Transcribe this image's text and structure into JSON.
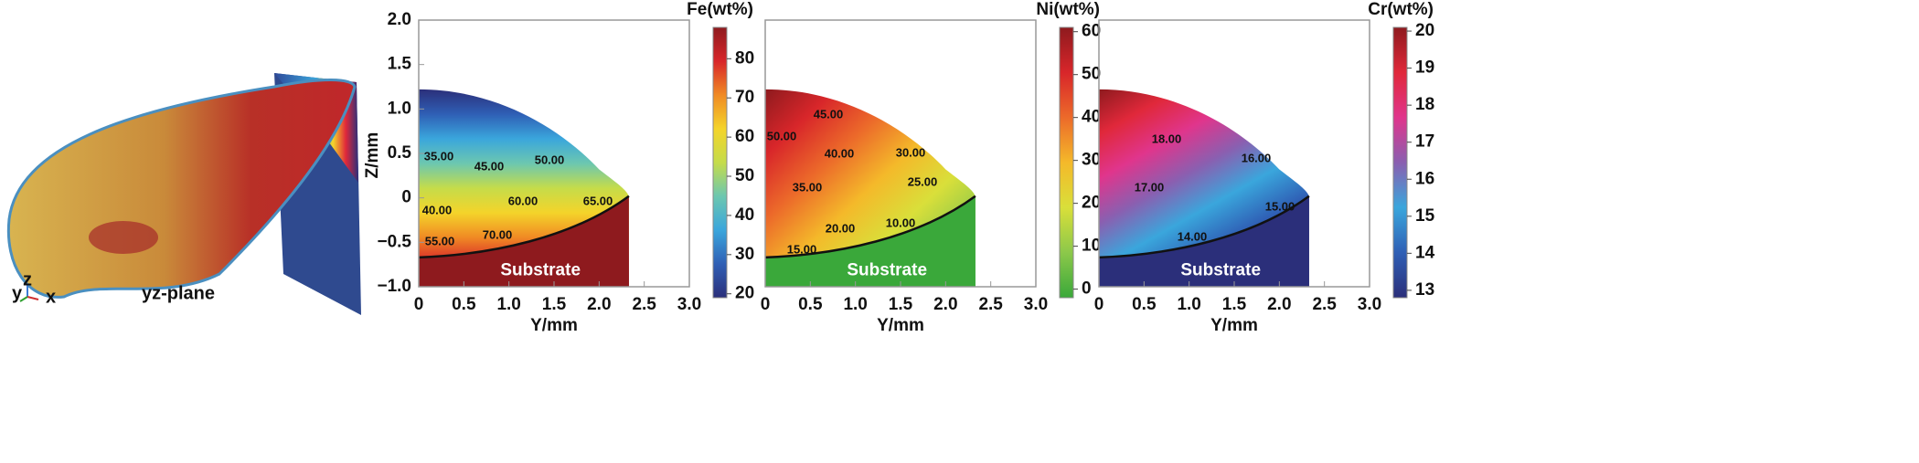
{
  "inset": {
    "label": "yz-plane",
    "axes": [
      "y",
      "z",
      "x"
    ]
  },
  "chart_data": [
    {
      "type": "contour",
      "xlabel": "Y/mm",
      "ylabel": "Z/mm",
      "colorbar_title": "Fe(wt%)",
      "region_label": "Substrate",
      "xlim": [
        0,
        3
      ],
      "ylim": [
        -1,
        2
      ],
      "xticks": [
        0,
        0.5,
        {
          "value": 1,
          "label": "1.0"
        },
        1.5,
        {
          "value": 2,
          "label": "2.0"
        },
        2.5,
        {
          "value": 3,
          "label": "3.0"
        }
      ],
      "yticks": [
        {
          "value": 2,
          "label": "2.0"
        },
        1.5,
        {
          "value": 1,
          "label": "1.0"
        },
        0.5,
        0,
        {
          "value": -0.5,
          "label": "−0.5"
        },
        {
          "value": -1,
          "label": "−1.0"
        }
      ],
      "clim": [
        19,
        88
      ],
      "cticks": [
        20,
        30,
        40,
        50,
        60,
        70,
        80
      ],
      "colormap": [
        "#2b2f7a",
        "#2f5fb5",
        "#3aa6dc",
        "#6cc7b0",
        "#c5dc4a",
        "#f4d42a",
        "#f08a24",
        "#d8262a",
        "#8e1a1e"
      ],
      "contour_labels": [
        {
          "value": 35,
          "label": "35.00"
        },
        {
          "value": 45,
          "label": "45.00"
        },
        {
          "value": 50,
          "label": "50.00"
        },
        {
          "value": 40,
          "label": "40.00"
        },
        {
          "value": 60,
          "label": "60.00"
        },
        {
          "value": 65,
          "label": "65.00"
        },
        {
          "value": 55,
          "label": "55.00"
        },
        {
          "value": 70,
          "label": "70.00"
        }
      ]
    },
    {
      "type": "contour",
      "xlabel": "Y/mm",
      "colorbar_title": "Ni(wt%)",
      "region_label": "Substrate",
      "xlim": [
        0,
        3
      ],
      "ylim": [
        -1,
        2
      ],
      "xticks": [
        0,
        0.5,
        {
          "value": 1,
          "label": "1.0"
        },
        1.5,
        {
          "value": 2,
          "label": "2.0"
        },
        2.5,
        {
          "value": 3,
          "label": "3.0"
        }
      ],
      "clim": [
        -2,
        61
      ],
      "cticks": [
        0,
        10,
        20,
        30,
        40,
        50,
        60
      ],
      "colormap": [
        "#3aa83a",
        "#8cc84a",
        "#d9df3a",
        "#f4b92a",
        "#ec6a2a",
        "#d8262a",
        "#8e1a1e"
      ],
      "contour_labels": [
        {
          "value": 45,
          "label": "45.00"
        },
        {
          "value": 50,
          "label": "50.00"
        },
        {
          "value": 40,
          "label": "40.00"
        },
        {
          "value": 30,
          "label": "30.00"
        },
        {
          "value": 35,
          "label": "35.00"
        },
        {
          "value": 25,
          "label": "25.00"
        },
        {
          "value": 20,
          "label": "20.00"
        },
        {
          "value": 10,
          "label": "10.00"
        },
        {
          "value": 15,
          "label": "15.00"
        }
      ]
    },
    {
      "type": "contour",
      "xlabel": "Y/mm",
      "colorbar_title": "Cr(wt%)",
      "region_label": "Substrate",
      "xlim": [
        0,
        3
      ],
      "ylim": [
        -1,
        2
      ],
      "xticks": [
        0,
        0.5,
        {
          "value": 1,
          "label": "1.0"
        },
        1.5,
        {
          "value": 2,
          "label": "2.0"
        },
        2.5,
        {
          "value": 3,
          "label": "3.0"
        }
      ],
      "clim": [
        12.8,
        20.1
      ],
      "cticks": [
        13,
        14,
        15,
        16,
        17,
        18,
        19,
        20
      ],
      "colormap": [
        "#2b2f7a",
        "#2f5fb5",
        "#3aa6dc",
        "#8a5fb0",
        "#e0358c",
        "#e0283a",
        "#8e1a1e"
      ],
      "contour_labels": [
        {
          "value": 18,
          "label": "18.00"
        },
        {
          "value": 16,
          "label": "16.00"
        },
        {
          "value": 17,
          "label": "17.00"
        },
        {
          "value": 15,
          "label": "15.00"
        },
        {
          "value": 14,
          "label": "14.00"
        }
      ]
    }
  ]
}
